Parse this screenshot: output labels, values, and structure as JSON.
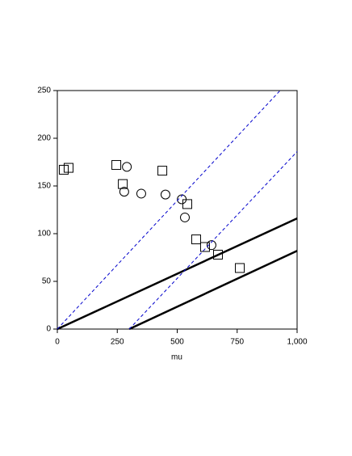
{
  "chart_data": {
    "type": "scatter",
    "x_label": "mu",
    "xlim": [
      0,
      1000
    ],
    "ylim": [
      0,
      250
    ],
    "xticks": [
      0,
      250,
      500,
      750,
      {
        "value": 1000,
        "label": "1,000"
      }
    ],
    "yticks": [
      0,
      50,
      100,
      150,
      200,
      250
    ],
    "series": [
      {
        "marker": "square",
        "color": "#000000",
        "x": [
          27,
          47,
          246,
          273,
          438,
          542,
          579,
          616,
          670,
          761
        ],
        "values": [
          167,
          169,
          172,
          152,
          166,
          131,
          94,
          86,
          78,
          64
        ]
      },
      {
        "marker": "circle",
        "color": "#000000",
        "x": [
          290,
          279,
          350,
          451,
          519,
          532,
          643
        ],
        "values": [
          170,
          144,
          142,
          141,
          136,
          117,
          88
        ]
      },
      {
        "line": "solid",
        "color": "#000000",
        "x": [
          0,
          1000
        ],
        "values": [
          0,
          116
        ]
      },
      {
        "line": "solid",
        "color": "#000000",
        "x": [
          300,
          1000
        ],
        "values": [
          0,
          82
        ]
      },
      {
        "line": "dashed",
        "color": "#0000cc",
        "x": [
          0,
          929
        ],
        "values": [
          0,
          250
        ]
      },
      {
        "line": "dashed",
        "color": "#0000cc",
        "x": [
          300,
          1000
        ],
        "values": [
          0,
          186
        ]
      }
    ]
  }
}
